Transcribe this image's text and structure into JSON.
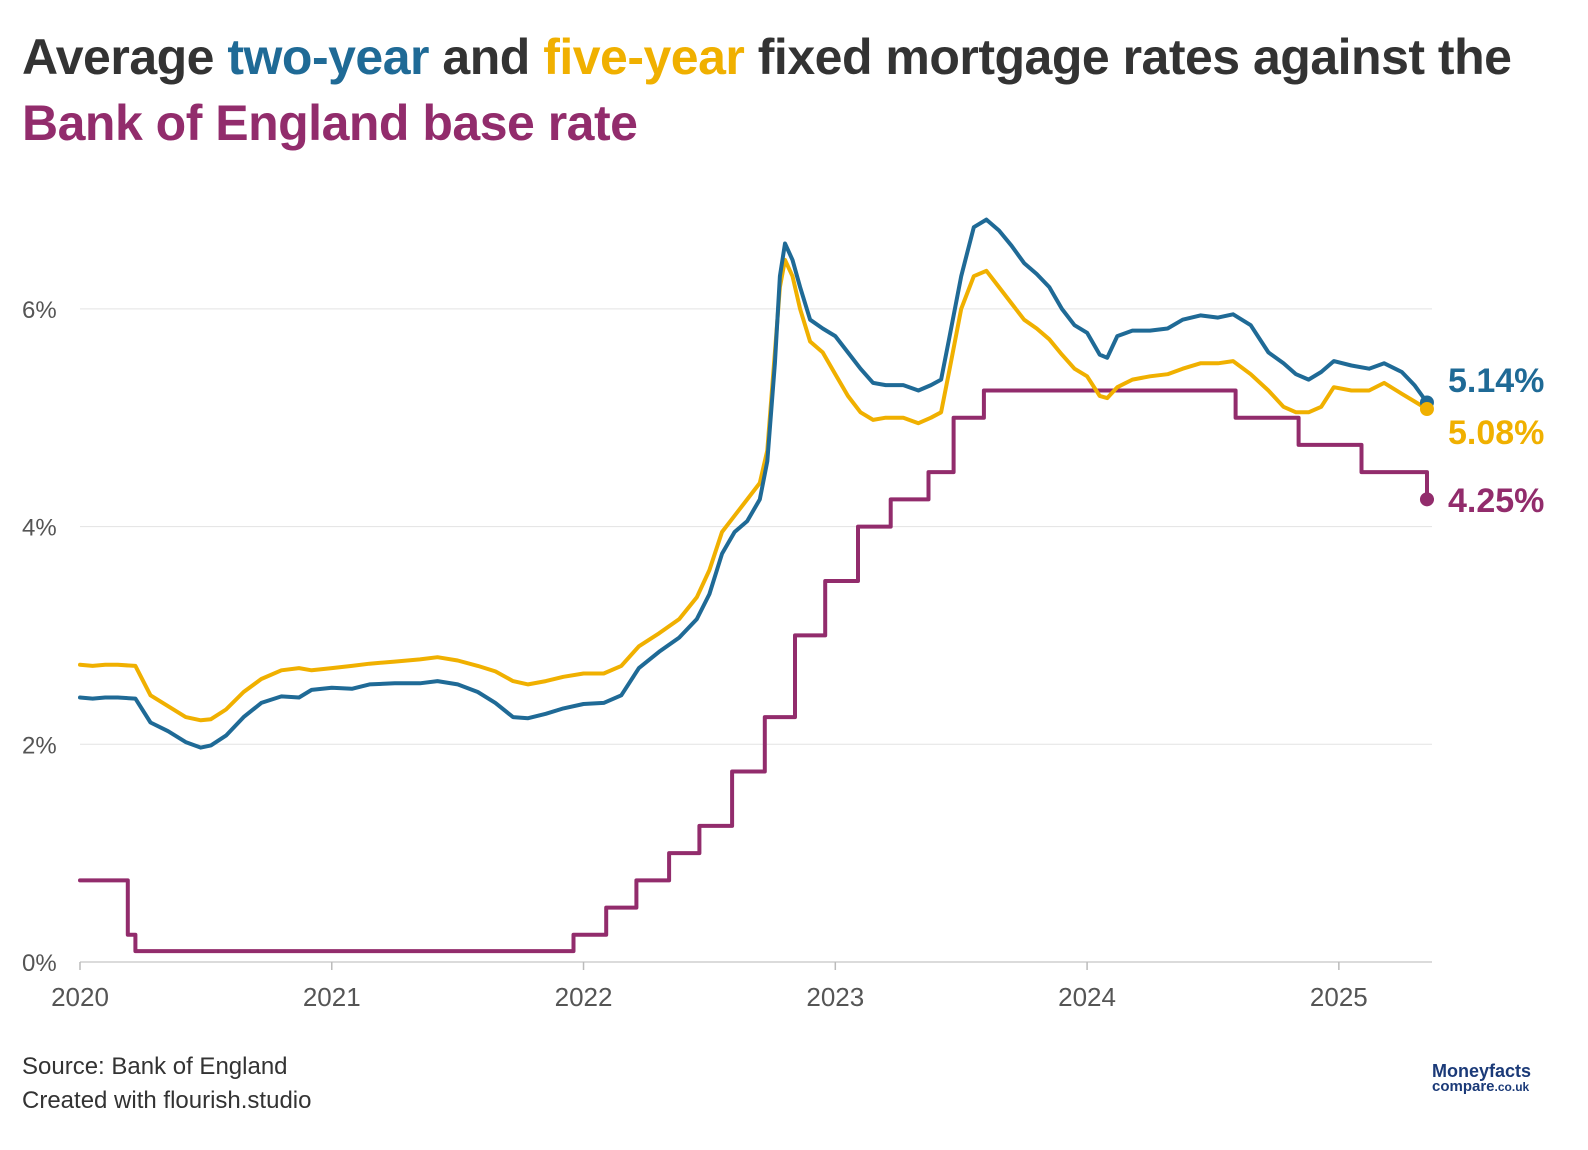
{
  "title": {
    "part1": "Average ",
    "part2": "two-year",
    "part3": " and ",
    "part4": "five-year",
    "part5": " fixed mortgage rates against the ",
    "part6": "Bank of England base rate"
  },
  "colors": {
    "two_year": "#1f6a96",
    "five_year": "#f0b000",
    "base": "#922c6c",
    "text": "#333333"
  },
  "footer": {
    "source": "Source: Bank of England",
    "created": "Created with flourish.studio"
  },
  "logo": {
    "line1": "Moneyfacts",
    "line2": "compare",
    "line2b": ".co.uk"
  },
  "chart_data": {
    "type": "line",
    "title": "Average two-year and five-year fixed mortgage rates against the Bank of England base rate",
    "xlim": [
      2020.0,
      2025.37
    ],
    "ylim": [
      0,
      7
    ],
    "x_ticks": [
      2020,
      2021,
      2022,
      2023,
      2024,
      2025
    ],
    "x_tick_labels": [
      "2020",
      "2021",
      "2022",
      "2023",
      "2024",
      "2025"
    ],
    "y_ticks": [
      0,
      2,
      4,
      6
    ],
    "y_tick_labels": [
      "0%",
      "2%",
      "4%",
      "6%"
    ],
    "grid": "horizontal",
    "series": [
      {
        "name": "two-year",
        "end_label": "5.14%",
        "x": [
          2020.0,
          2020.05,
          2020.1,
          2020.15,
          2020.22,
          2020.28,
          2020.35,
          2020.42,
          2020.48,
          2020.52,
          2020.58,
          2020.65,
          2020.72,
          2020.8,
          2020.87,
          2020.92,
          2021.0,
          2021.08,
          2021.15,
          2021.25,
          2021.35,
          2021.42,
          2021.5,
          2021.58,
          2021.65,
          2021.72,
          2021.78,
          2021.85,
          2021.92,
          2022.0,
          2022.08,
          2022.15,
          2022.22,
          2022.3,
          2022.38,
          2022.45,
          2022.5,
          2022.55,
          2022.6,
          2022.65,
          2022.7,
          2022.73,
          2022.76,
          2022.78,
          2022.8,
          2022.83,
          2022.86,
          2022.9,
          2022.95,
          2023.0,
          2023.05,
          2023.1,
          2023.15,
          2023.2,
          2023.27,
          2023.33,
          2023.38,
          2023.42,
          2023.45,
          2023.5,
          2023.55,
          2023.6,
          2023.65,
          2023.7,
          2023.75,
          2023.8,
          2023.85,
          2023.9,
          2023.95,
          2024.0,
          2024.05,
          2024.08,
          2024.12,
          2024.18,
          2024.25,
          2024.32,
          2024.38,
          2024.45,
          2024.52,
          2024.58,
          2024.65,
          2024.72,
          2024.78,
          2024.83,
          2024.88,
          2024.93,
          2024.98,
          2025.05,
          2025.12,
          2025.18,
          2025.25,
          2025.3,
          2025.35
        ],
        "y": [
          2.43,
          2.42,
          2.43,
          2.43,
          2.42,
          2.2,
          2.12,
          2.02,
          1.97,
          1.99,
          2.08,
          2.25,
          2.38,
          2.44,
          2.43,
          2.5,
          2.52,
          2.51,
          2.55,
          2.56,
          2.56,
          2.58,
          2.55,
          2.48,
          2.38,
          2.25,
          2.24,
          2.28,
          2.33,
          2.37,
          2.38,
          2.45,
          2.7,
          2.85,
          2.98,
          3.15,
          3.38,
          3.75,
          3.95,
          4.05,
          4.25,
          4.6,
          5.5,
          6.3,
          6.6,
          6.45,
          6.2,
          5.9,
          5.82,
          5.75,
          5.6,
          5.45,
          5.32,
          5.3,
          5.3,
          5.25,
          5.3,
          5.35,
          5.7,
          6.3,
          6.75,
          6.82,
          6.72,
          6.58,
          6.42,
          6.32,
          6.2,
          6.0,
          5.85,
          5.78,
          5.58,
          5.55,
          5.75,
          5.8,
          5.8,
          5.82,
          5.9,
          5.94,
          5.92,
          5.95,
          5.85,
          5.6,
          5.5,
          5.4,
          5.35,
          5.42,
          5.52,
          5.48,
          5.45,
          5.5,
          5.42,
          5.3,
          5.14
        ]
      },
      {
        "name": "five-year",
        "end_label": "5.08%",
        "x": [
          2020.0,
          2020.05,
          2020.1,
          2020.15,
          2020.22,
          2020.28,
          2020.35,
          2020.42,
          2020.48,
          2020.52,
          2020.58,
          2020.65,
          2020.72,
          2020.8,
          2020.87,
          2020.92,
          2021.0,
          2021.08,
          2021.15,
          2021.25,
          2021.35,
          2021.42,
          2021.5,
          2021.58,
          2021.65,
          2021.72,
          2021.78,
          2021.85,
          2021.92,
          2022.0,
          2022.08,
          2022.15,
          2022.22,
          2022.3,
          2022.38,
          2022.45,
          2022.5,
          2022.55,
          2022.6,
          2022.65,
          2022.7,
          2022.73,
          2022.76,
          2022.78,
          2022.8,
          2022.83,
          2022.86,
          2022.9,
          2022.95,
          2023.0,
          2023.05,
          2023.1,
          2023.15,
          2023.2,
          2023.27,
          2023.33,
          2023.38,
          2023.42,
          2023.45,
          2023.5,
          2023.55,
          2023.6,
          2023.65,
          2023.7,
          2023.75,
          2023.8,
          2023.85,
          2023.9,
          2023.95,
          2024.0,
          2024.05,
          2024.08,
          2024.12,
          2024.18,
          2024.25,
          2024.32,
          2024.38,
          2024.45,
          2024.52,
          2024.58,
          2024.65,
          2024.72,
          2024.78,
          2024.83,
          2024.88,
          2024.93,
          2024.98,
          2025.05,
          2025.12,
          2025.18,
          2025.25,
          2025.3,
          2025.35
        ],
        "y": [
          2.73,
          2.72,
          2.73,
          2.73,
          2.72,
          2.45,
          2.35,
          2.25,
          2.22,
          2.23,
          2.32,
          2.48,
          2.6,
          2.68,
          2.7,
          2.68,
          2.7,
          2.72,
          2.74,
          2.76,
          2.78,
          2.8,
          2.77,
          2.72,
          2.67,
          2.58,
          2.55,
          2.58,
          2.62,
          2.65,
          2.65,
          2.72,
          2.9,
          3.02,
          3.15,
          3.35,
          3.6,
          3.95,
          4.1,
          4.25,
          4.4,
          4.7,
          5.6,
          6.2,
          6.45,
          6.3,
          6.0,
          5.7,
          5.6,
          5.4,
          5.2,
          5.05,
          4.98,
          5.0,
          5.0,
          4.95,
          5.0,
          5.05,
          5.4,
          6.0,
          6.3,
          6.35,
          6.2,
          6.05,
          5.9,
          5.82,
          5.72,
          5.58,
          5.45,
          5.38,
          5.2,
          5.18,
          5.28,
          5.35,
          5.38,
          5.4,
          5.45,
          5.5,
          5.5,
          5.52,
          5.4,
          5.25,
          5.1,
          5.05,
          5.05,
          5.1,
          5.28,
          5.25,
          5.25,
          5.32,
          5.22,
          5.15,
          5.08
        ]
      },
      {
        "name": "base",
        "end_label": "4.25%",
        "step": true,
        "x": [
          2020.0,
          2020.19,
          2020.21,
          2020.22,
          2021.96,
          2022.09,
          2022.21,
          2022.34,
          2022.46,
          2022.59,
          2022.72,
          2022.84,
          2022.96,
          2023.09,
          2023.22,
          2023.37,
          2023.47,
          2023.59,
          2024.59,
          2024.84,
          2025.09,
          2025.35
        ],
        "y": [
          0.75,
          0.25,
          0.25,
          0.1,
          0.25,
          0.5,
          0.75,
          1.0,
          1.25,
          1.75,
          2.25,
          3.0,
          3.5,
          4.0,
          4.25,
          4.5,
          5.0,
          5.25,
          5.0,
          4.75,
          4.5,
          4.25
        ]
      }
    ]
  }
}
